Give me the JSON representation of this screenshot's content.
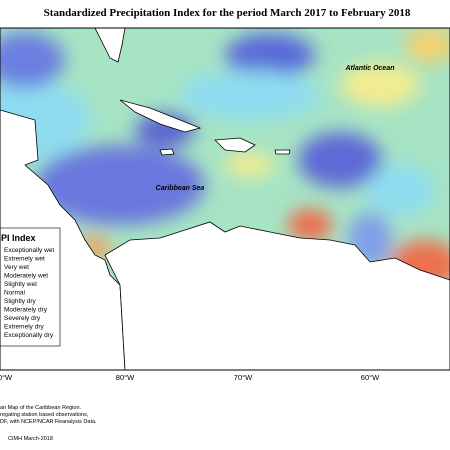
{
  "title": "Standardized Precipitation Index for the period March 2017 to February 2018",
  "labels": {
    "ocean": "Atlantic Ocean",
    "sea": "Caribbean Sea"
  },
  "legend": {
    "title": "SPI Index",
    "items": [
      "Exceptionally wet",
      "Extremely wet",
      "Very wet",
      "Moderately wet",
      "Slightly wet",
      "Normal",
      "Slightly dry",
      "Moderately dry",
      "Severely dry",
      "Extremely dry",
      "Exceptionally dry"
    ]
  },
  "axis": {
    "ticks": [
      "0°W",
      "80°W",
      "70°W",
      "60°W"
    ]
  },
  "notes": [
    "an Map of the Caribbean Region.",
    "regating station based observations,",
    "DF, with NCEP/NCAR Reanalysis Data."
  ],
  "credit": "CIMH March-2018"
}
